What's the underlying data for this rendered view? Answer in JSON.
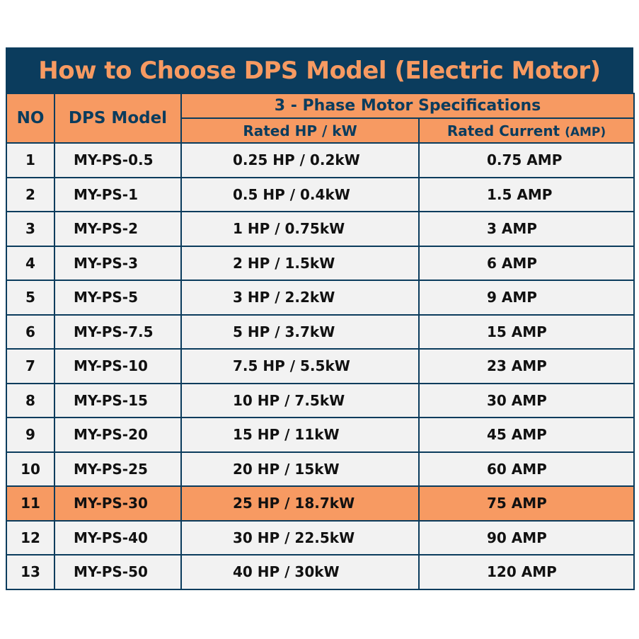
{
  "title": "How to Choose DPS Model (Electric Motor)",
  "headers": {
    "no": "NO",
    "model": "DPS Model",
    "group": "3 - Phase Motor Specifications",
    "hp": "Rated HP / kW",
    "current": "Rated Current",
    "current_unit": "(AMP)"
  },
  "colors": {
    "navy": "#0b3c5d",
    "orange": "#f79a62",
    "row": "#f2f2f2"
  },
  "highlighted_row": 11,
  "rows": [
    {
      "no": "1",
      "model": "MY-PS-0.5",
      "hp": "0.25 HP / 0.2kW",
      "current": "0.75 AMP"
    },
    {
      "no": "2",
      "model": "MY-PS-1",
      "hp": "0.5 HP / 0.4kW",
      "current": "1.5 AMP"
    },
    {
      "no": "3",
      "model": "MY-PS-2",
      "hp": "1 HP / 0.75kW",
      "current": "3 AMP"
    },
    {
      "no": "4",
      "model": "MY-PS-3",
      "hp": "2 HP / 1.5kW",
      "current": "6 AMP"
    },
    {
      "no": "5",
      "model": "MY-PS-5",
      "hp": "3 HP / 2.2kW",
      "current": "9 AMP"
    },
    {
      "no": "6",
      "model": "MY-PS-7.5",
      "hp": "5 HP / 3.7kW",
      "current": "15 AMP"
    },
    {
      "no": "7",
      "model": "MY-PS-10",
      "hp": "7.5 HP / 5.5kW",
      "current": "23 AMP"
    },
    {
      "no": "8",
      "model": "MY-PS-15",
      "hp": "10 HP / 7.5kW",
      "current": "30 AMP"
    },
    {
      "no": "9",
      "model": "MY-PS-20",
      "hp": "15 HP / 11kW",
      "current": "45 AMP"
    },
    {
      "no": "10",
      "model": "MY-PS-25",
      "hp": "20 HP / 15kW",
      "current": "60 AMP"
    },
    {
      "no": "11",
      "model": "MY-PS-30",
      "hp": "25 HP / 18.7kW",
      "current": "75 AMP"
    },
    {
      "no": "12",
      "model": "MY-PS-40",
      "hp": "30 HP / 22.5kW",
      "current": "90 AMP"
    },
    {
      "no": "13",
      "model": "MY-PS-50",
      "hp": "40 HP / 30kW",
      "current": "120 AMP"
    }
  ]
}
